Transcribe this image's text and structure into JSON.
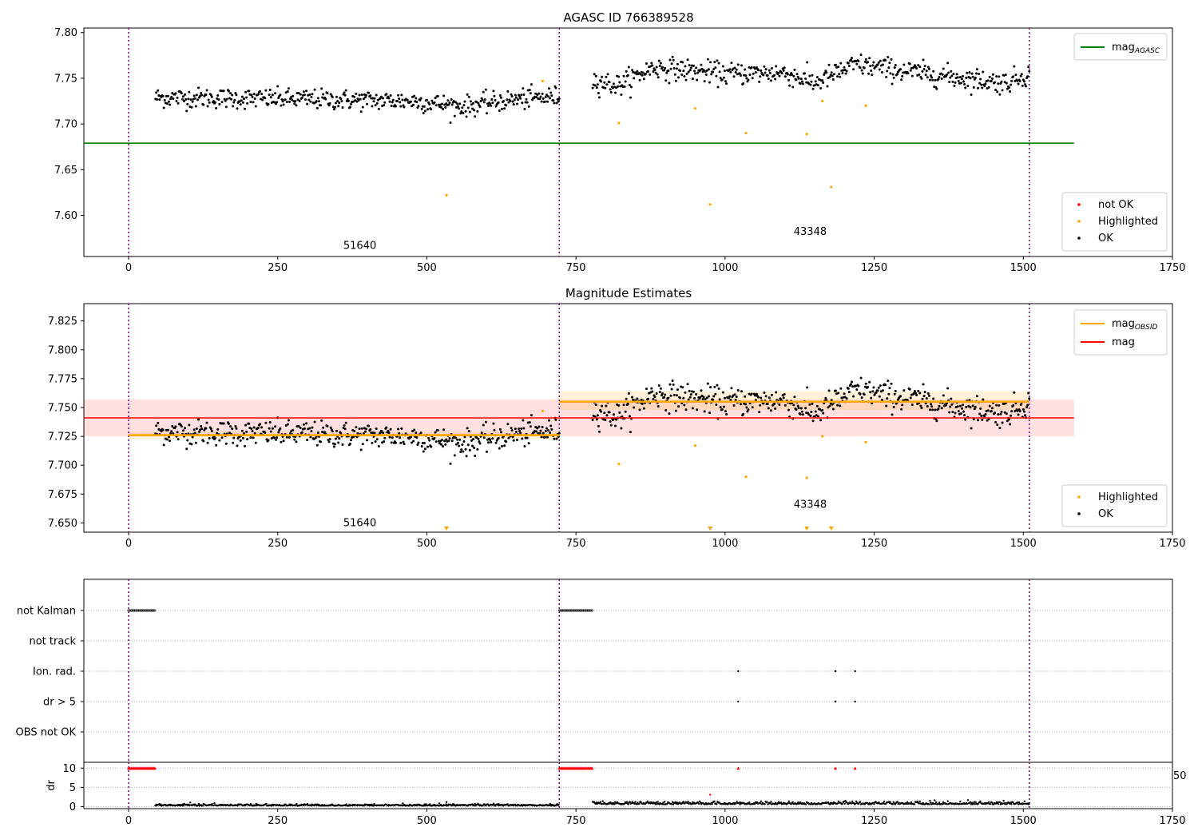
{
  "chart_data": [
    {
      "type": "scatter",
      "title": "AGASC ID 766389528",
      "xlim": [
        -75,
        1750
      ],
      "ylim": [
        7.555,
        7.805
      ],
      "xticks": [
        "0",
        "250",
        "500",
        "750",
        "1000",
        "1250",
        "1500",
        "1750"
      ],
      "yticks": [
        "7.60",
        "7.65",
        "7.70",
        "7.75",
        "7.80"
      ],
      "reference_lines": [
        {
          "label": "mag",
          "label_sub": "AGASC",
          "y": 7.679,
          "x_range": [
            -75,
            1585
          ],
          "color": "#008000"
        }
      ],
      "obsid_boundaries": [
        0,
        722,
        1510
      ],
      "obsid_labels": [
        {
          "text": "51640",
          "x": 360,
          "y": 7.567
        },
        {
          "text": "43348",
          "x": 1115,
          "y": 7.582
        }
      ],
      "legend_lines": {
        "position": "top-right",
        "entries": [
          {
            "label": "mag",
            "sub": "AGASC",
            "color": "#008000"
          }
        ]
      },
      "legend_points": {
        "position": "bottom-right",
        "entries": [
          {
            "label": "not OK",
            "color": "#ff0000"
          },
          {
            "label": "Highlighted",
            "color": "#ffa500"
          },
          {
            "label": "OK",
            "color": "#000000"
          }
        ]
      },
      "series": [
        {
          "name": "OK",
          "color": "#000000",
          "segments": [
            {
              "x0": 45,
              "x1": 722,
              "n": 480,
              "trend": [
                [
                  45,
                  7.729
                ],
                [
                  300,
                  7.727
                ],
                [
                  480,
                  7.725
                ],
                [
                  560,
                  7.719
                ],
                [
                  650,
                  7.727
                ],
                [
                  722,
                  7.73
                ]
              ],
              "noise": 0.0055
            },
            {
              "x0": 778,
              "x1": 1510,
              "n": 520,
              "trend": [
                [
                  778,
                  7.748
                ],
                [
                  820,
                  7.742
                ],
                [
                  880,
                  7.762
                ],
                [
                  1000,
                  7.755
                ],
                [
                  1100,
                  7.756
                ],
                [
                  1150,
                  7.745
                ],
                [
                  1220,
                  7.765
                ],
                [
                  1300,
                  7.758
                ],
                [
                  1400,
                  7.75
                ],
                [
                  1470,
                  7.745
                ],
                [
                  1510,
                  7.755
                ]
              ],
              "noise": 0.006
            }
          ]
        },
        {
          "name": "Highlighted",
          "color": "#ffa500",
          "points": [
            [
              533,
              7.622
            ],
            [
              694,
              7.747
            ],
            [
              822,
              7.701
            ],
            [
              950,
              7.717
            ],
            [
              975,
              7.612
            ],
            [
              1035,
              7.69
            ],
            [
              1137,
              7.689
            ],
            [
              1163,
              7.725
            ],
            [
              1178,
              7.631
            ],
            [
              1236,
              7.72
            ]
          ]
        }
      ]
    },
    {
      "type": "scatter",
      "title": "Magnitude Estimates",
      "xlim": [
        -75,
        1750
      ],
      "ylim": [
        7.642,
        7.84
      ],
      "xticks": [
        "0",
        "250",
        "500",
        "750",
        "1000",
        "1250",
        "1500",
        "1750"
      ],
      "yticks": [
        "7.650",
        "7.675",
        "7.700",
        "7.725",
        "7.750",
        "7.775",
        "7.800",
        "7.825"
      ],
      "mag": {
        "label": "mag",
        "value": 7.741,
        "band": [
          7.725,
          7.757
        ],
        "x_range": [
          -75,
          1585
        ],
        "color": "#ff0000"
      },
      "mag_obsid": {
        "label": "mag",
        "label_sub": "OBSID",
        "color": "#ffa500",
        "segments": [
          {
            "x0": 0,
            "x1": 722,
            "value": 7.726,
            "band": [
              7.723,
              7.729
            ]
          },
          {
            "x0": 722,
            "x1": 1510,
            "value": 7.755,
            "band": [
              7.748,
              7.764
            ]
          }
        ]
      },
      "obsid_boundaries": [
        0,
        722,
        1510
      ],
      "obsid_labels": [
        {
          "text": "51640",
          "x": 360,
          "y": 7.65
        },
        {
          "text": "43348",
          "x": 1115,
          "y": 7.666
        }
      ],
      "legend_lines": {
        "position": "top-right",
        "entries": [
          {
            "label": "mag",
            "sub": "OBSID",
            "color": "#ffa500"
          },
          {
            "label": "mag",
            "sub": "",
            "color": "#ff0000"
          }
        ]
      },
      "legend_points": {
        "position": "bottom-right",
        "entries": [
          {
            "label": "Highlighted",
            "color": "#ffa500"
          },
          {
            "label": "OK",
            "color": "#000000"
          }
        ]
      },
      "offscale_markers": {
        "color": "#ffa500",
        "x": [
          533,
          975,
          1137,
          1178
        ]
      },
      "series_ref": "same points as the AGASC panel"
    },
    {
      "type": "scatter",
      "title": "",
      "xlim": [
        -75,
        1750
      ],
      "flag_rows": [
        "not Kalman",
        "not track",
        "Ion. rad.",
        "dr > 5",
        "OBS not OK"
      ],
      "flags": {
        "not Kalman": {
          "ranges": [
            [
              0,
              45
            ],
            [
              722,
              778
            ]
          ]
        },
        "not track": {
          "ranges": []
        },
        "Ion. rad.": {
          "x": [
            1022,
            1185,
            1218
          ]
        },
        "dr > 5": {
          "x": [
            1022,
            1185,
            1218
          ]
        },
        "OBS not OK": {
          "x": []
        }
      },
      "dr": {
        "ylabel": "dr",
        "ylim": [
          -0.5,
          11.5
        ],
        "yticks": [
          "0",
          "5",
          "10"
        ],
        "clipped_value": 10,
        "clipped_color": "#ff0000",
        "clipped_ranges": [
          [
            0,
            45
          ],
          [
            722,
            778
          ]
        ],
        "clipped_x": [
          1022,
          1185,
          1218
        ],
        "extra_points": [
          [
            533,
            1.2
          ],
          [
            975,
            3.1
          ]
        ],
        "segments": [
          {
            "x0": 45,
            "x1": 722,
            "base": 0.25,
            "noise": 0.3
          },
          {
            "x0": 778,
            "x1": 1510,
            "base": 0.6,
            "noise": 0.5
          }
        ],
        "edge_label": "50"
      },
      "xticks": [
        "0",
        "250",
        "500",
        "750",
        "1000",
        "1250",
        "1500",
        "1750"
      ]
    }
  ]
}
